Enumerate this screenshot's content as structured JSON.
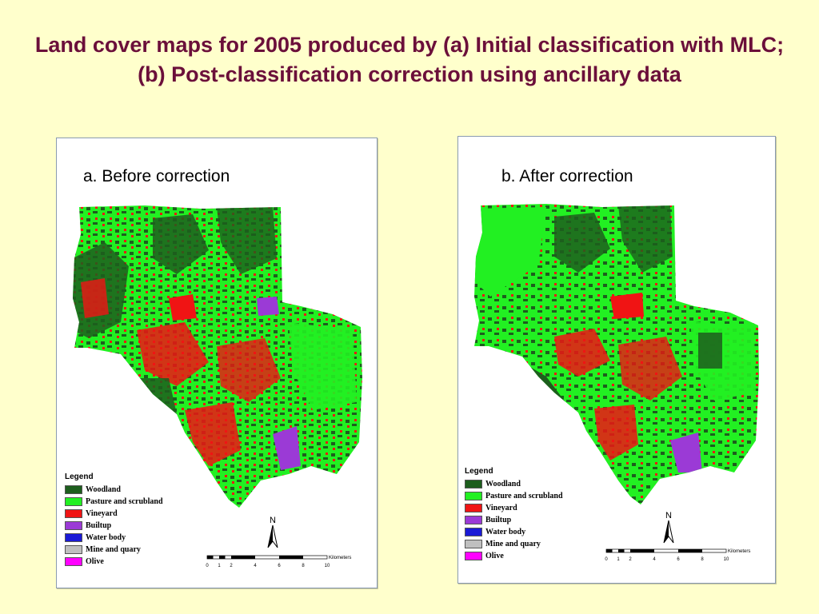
{
  "title": "Land cover maps for 2005 produced by (a) Initial classification with MLC; (b) Post-classification correction using ancillary data",
  "panels": [
    {
      "label": "a. Before correction"
    },
    {
      "label": "b. After correction"
    }
  ],
  "legend": {
    "title": "Legend",
    "items": [
      {
        "label": "Woodland",
        "color": "#1d5e1d"
      },
      {
        "label": "Pasture and scrubland",
        "color": "#22f022"
      },
      {
        "label": "Vineyard",
        "color": "#f01414"
      },
      {
        "label": "Builtup",
        "color": "#9b3ad6"
      },
      {
        "label": "Water body",
        "color": "#1a1ad6"
      },
      {
        "label": "Mine and quary",
        "color": "#bfbfbf"
      },
      {
        "label": "Olive",
        "color": "#ff00ff"
      }
    ]
  },
  "north_label": "N",
  "scale": {
    "unit": "Kilometers",
    "ticks": [
      "0",
      "1",
      "2",
      "4",
      "6",
      "8",
      "10"
    ]
  }
}
